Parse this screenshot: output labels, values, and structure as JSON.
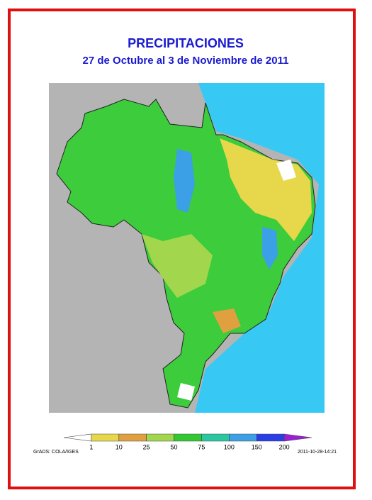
{
  "header": {
    "title": "PRECIPITACIONES",
    "subtitle": "27 de Octubre al 3 de Noviembre de 2011"
  },
  "legend": {
    "labels": [
      1,
      10,
      25,
      50,
      75,
      100,
      150,
      200
    ],
    "colors": [
      "#ffffff",
      "#e6d84a",
      "#e0a040",
      "#a2d64c",
      "#32c832",
      "#2ac8a0",
      "#3ca0e6",
      "#2a3ee6",
      "#9a20d8"
    ]
  },
  "footer": {
    "source": "GrADS: COLA/IGES",
    "timestamp": "2011-10-28-14:21"
  }
}
